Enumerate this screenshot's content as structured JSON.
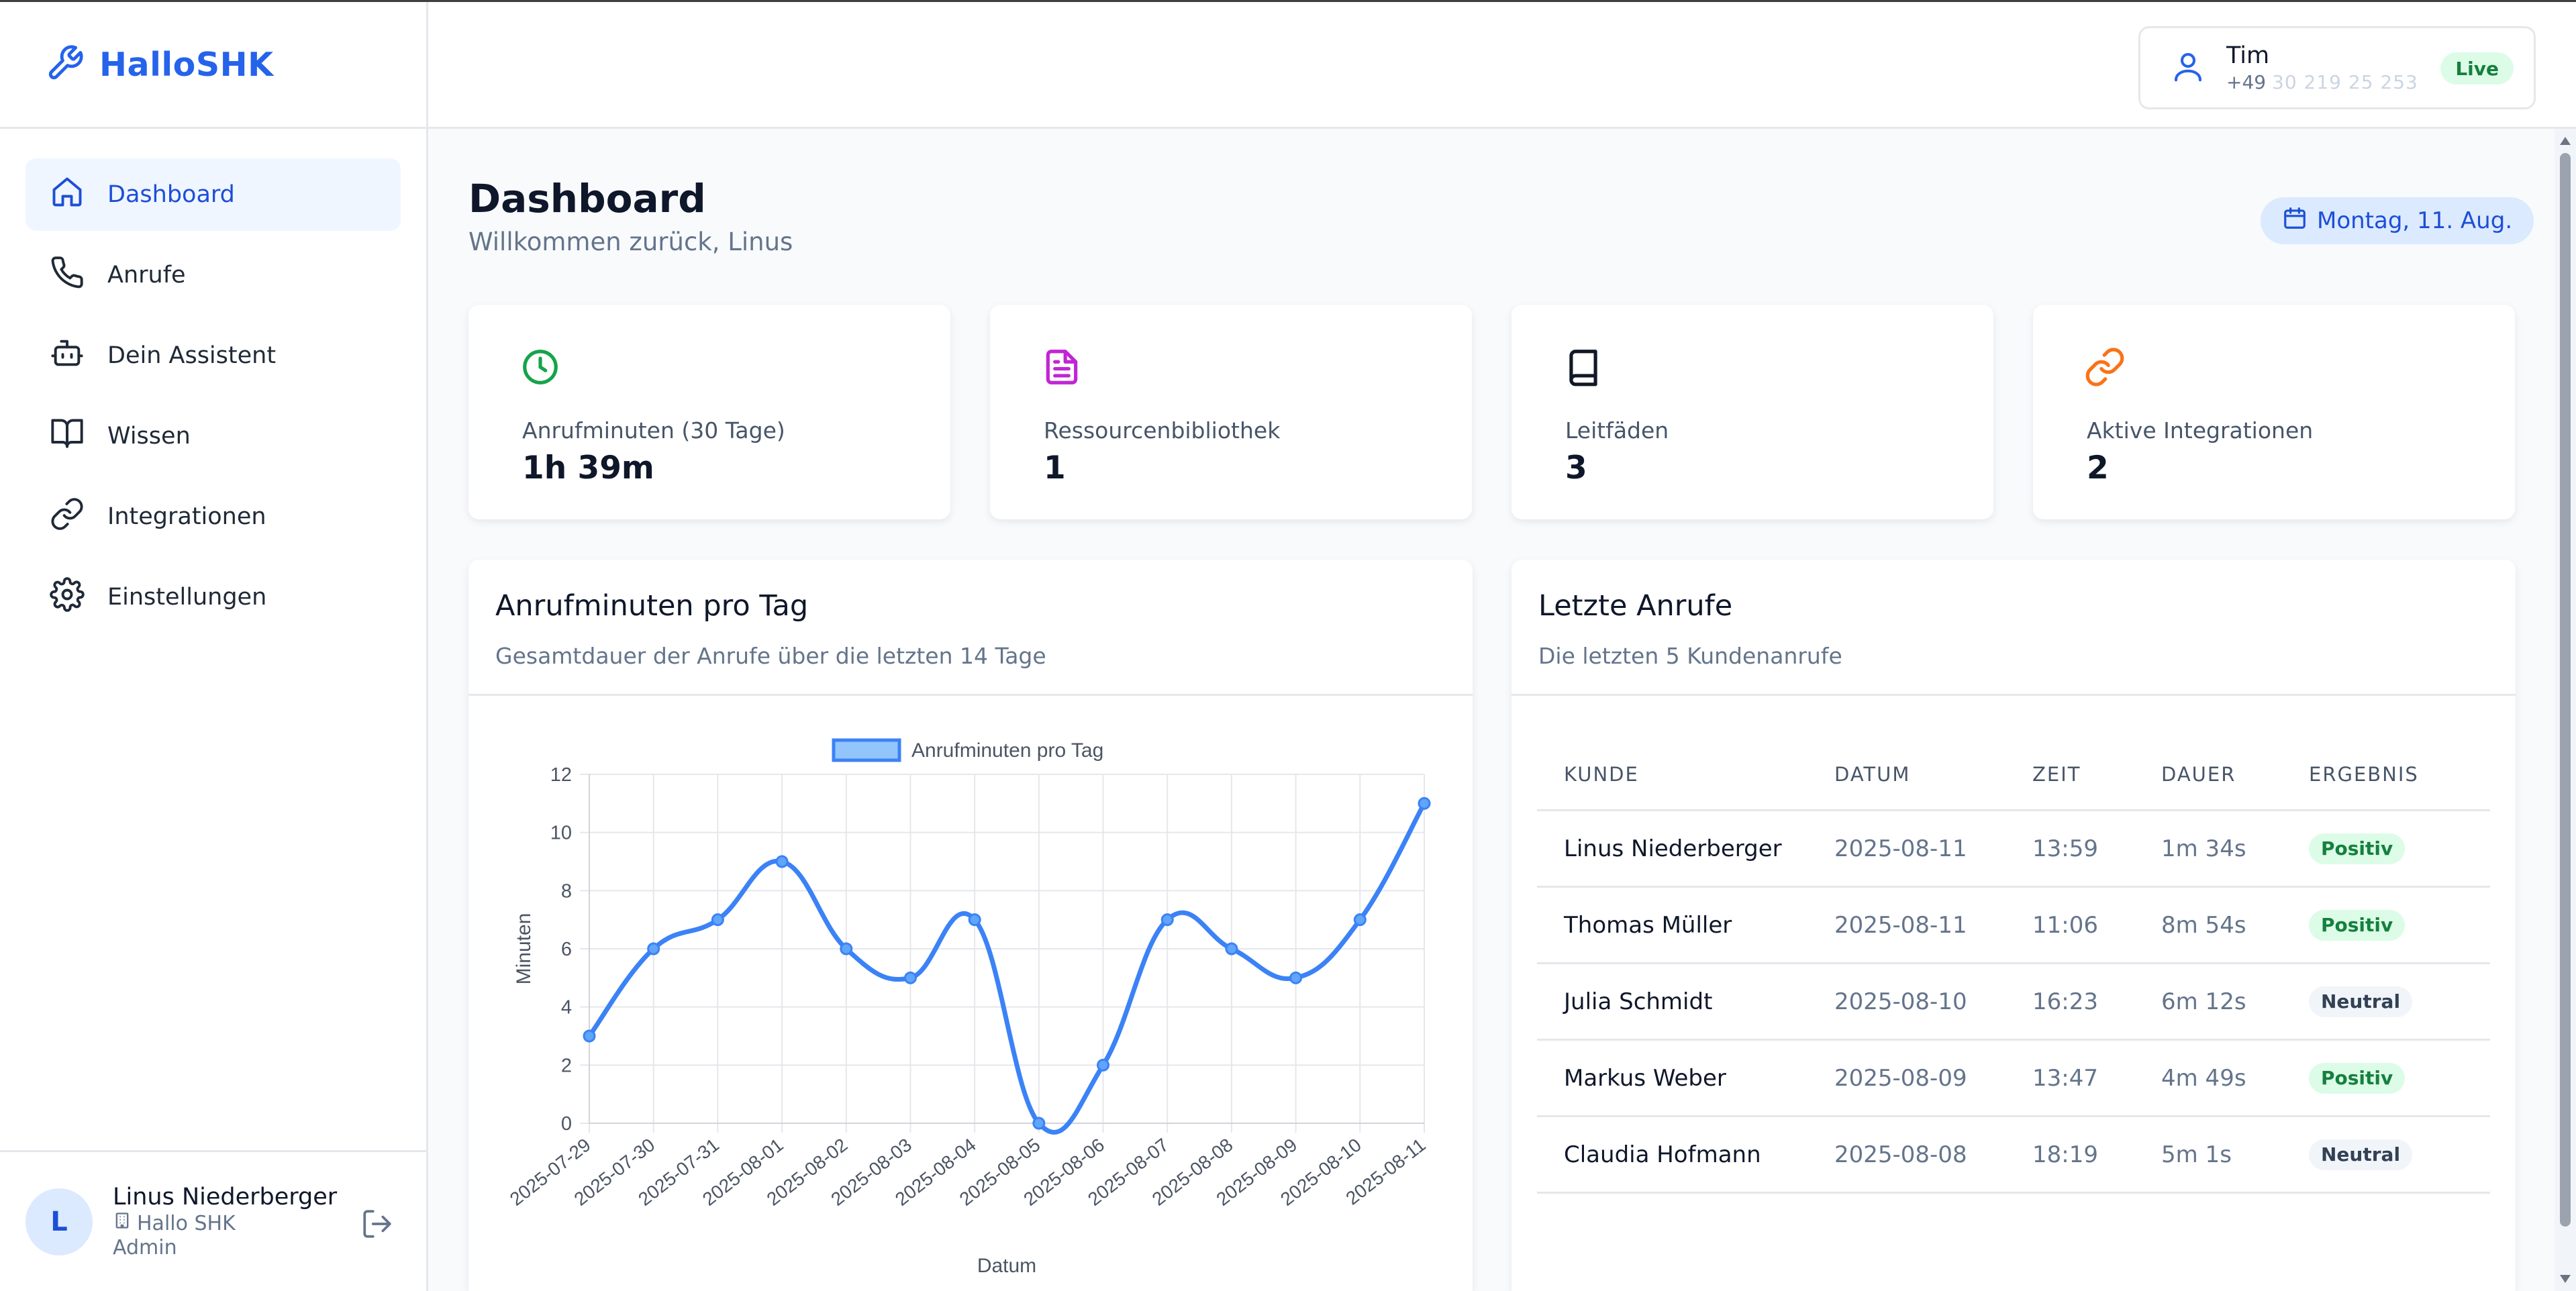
{
  "app": {
    "brand": "HalloSHK"
  },
  "sidebar": {
    "items": [
      {
        "label": "Dashboard",
        "icon": "home-icon",
        "active": true
      },
      {
        "label": "Anrufe",
        "icon": "phone-icon"
      },
      {
        "label": "Dein Assistent",
        "icon": "bot-icon"
      },
      {
        "label": "Wissen",
        "icon": "book-open-icon"
      },
      {
        "label": "Integrationen",
        "icon": "link-icon"
      },
      {
        "label": "Einstellungen",
        "icon": "gear-icon"
      }
    ],
    "user": {
      "initial": "L",
      "name": "Linus Niederberger",
      "company": "Hallo SHK",
      "role": "Admin"
    }
  },
  "header": {
    "profile": {
      "name": "Tim",
      "phone_prefix": "+49",
      "phone_masked": "30 219 25 253",
      "status": "Live"
    }
  },
  "dashboard": {
    "title": "Dashboard",
    "subtitle": "Willkommen zurück, Linus",
    "date": "Montag, 11. Aug.",
    "stats": [
      {
        "label": "Anrufminuten (30 Tage)",
        "value": "1h 39m",
        "icon": "clock-icon",
        "color": "#16a34a"
      },
      {
        "label": "Ressourcenbibliothek",
        "value": "1",
        "icon": "document-icon",
        "color": "#c026d3"
      },
      {
        "label": "Leitfäden",
        "value": "3",
        "icon": "book-icon",
        "color": "#111827"
      },
      {
        "label": "Aktive Integrationen",
        "value": "2",
        "icon": "link-icon",
        "color": "#f97316"
      }
    ]
  },
  "chart_panel": {
    "title": "Anrufminuten pro Tag",
    "description": "Gesamtdauer der Anrufe über die letzten 14 Tage"
  },
  "chart_data": {
    "type": "line",
    "x": [
      "2025-07-29",
      "2025-07-30",
      "2025-07-31",
      "2025-08-01",
      "2025-08-02",
      "2025-08-03",
      "2025-08-04",
      "2025-08-05",
      "2025-08-06",
      "2025-08-07",
      "2025-08-08",
      "2025-08-09",
      "2025-08-10",
      "2025-08-11"
    ],
    "series": [
      {
        "name": "Anrufminuten pro Tag",
        "values": [
          3,
          6,
          7,
          9,
          6,
          5,
          7,
          0,
          2,
          7,
          6,
          5,
          7,
          11
        ],
        "color": "#3b82f6"
      }
    ],
    "xlabel": "Datum",
    "ylabel": "Minuten",
    "ylim": [
      0,
      12
    ],
    "yticks": [
      0,
      2,
      4,
      6,
      8,
      10,
      12
    ],
    "grid": true,
    "legend": "top-center"
  },
  "calls_panel": {
    "title": "Letzte Anrufe",
    "description": "Die letzten 5 Kundenanrufe",
    "columns": [
      "KUNDE",
      "DATUM",
      "ZEIT",
      "DAUER",
      "ERGEBNIS"
    ],
    "rows": [
      {
        "kunde": "Linus Niederberger",
        "datum": "2025-08-11",
        "zeit": "13:59",
        "dauer": "1m 34s",
        "ergebnis": "Positiv"
      },
      {
        "kunde": "Thomas Müller",
        "datum": "2025-08-11",
        "zeit": "11:06",
        "dauer": "8m 54s",
        "ergebnis": "Positiv"
      },
      {
        "kunde": "Julia Schmidt",
        "datum": "2025-08-10",
        "zeit": "16:23",
        "dauer": "6m 12s",
        "ergebnis": "Neutral"
      },
      {
        "kunde": "Markus Weber",
        "datum": "2025-08-09",
        "zeit": "13:47",
        "dauer": "4m 49s",
        "ergebnis": "Positiv"
      },
      {
        "kunde": "Claudia Hofmann",
        "datum": "2025-08-08",
        "zeit": "18:19",
        "dauer": "5m 1s",
        "ergebnis": "Neutral"
      }
    ]
  }
}
